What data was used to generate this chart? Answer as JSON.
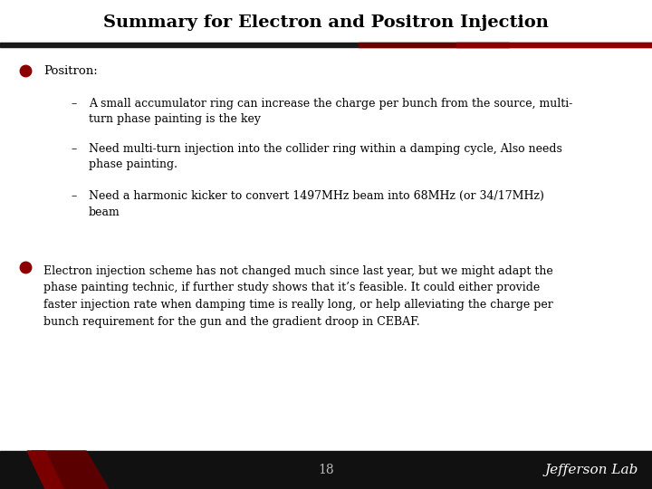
{
  "title": "Summary for Electron and Positron Injection",
  "title_fontsize": 14,
  "bg_color": "#ffffff",
  "title_bar_dark": "#1a1a1a",
  "title_bar_red": "#8b0000",
  "footer_bg": "#111111",
  "footer_text": "18",
  "footer_right": "Jefferson Lab",
  "bullet_color": "#8b0000",
  "bullet1_header": "Positron:",
  "bullet1_subs": [
    "A small accumulator ring can increase the charge per bunch from the source, multi-\nturn phase painting is the key",
    "Need multi-turn injection into the collider ring within a damping cycle, Also needs\nphase painting.",
    "Need a harmonic kicker to convert 1497MHz beam into 68MHz (or 34/17MHz)\nbeam"
  ],
  "bullet2_text": "Electron injection scheme has not changed much since last year, but we might adapt the\nphase painting technic, if further study shows that it’s feasible. It could either provide\nfaster injection rate when damping time is really long, or help alleviating the charge per\nbunch requirement for the gun and the gradient droop in CEBAF.",
  "text_fontsize": 9.0,
  "header_fontsize": 9.5,
  "text_color": "#000000",
  "text_font": "DejaVu Serif",
  "footer_fontsize": 10,
  "page_num_color": "#bbbbbb"
}
